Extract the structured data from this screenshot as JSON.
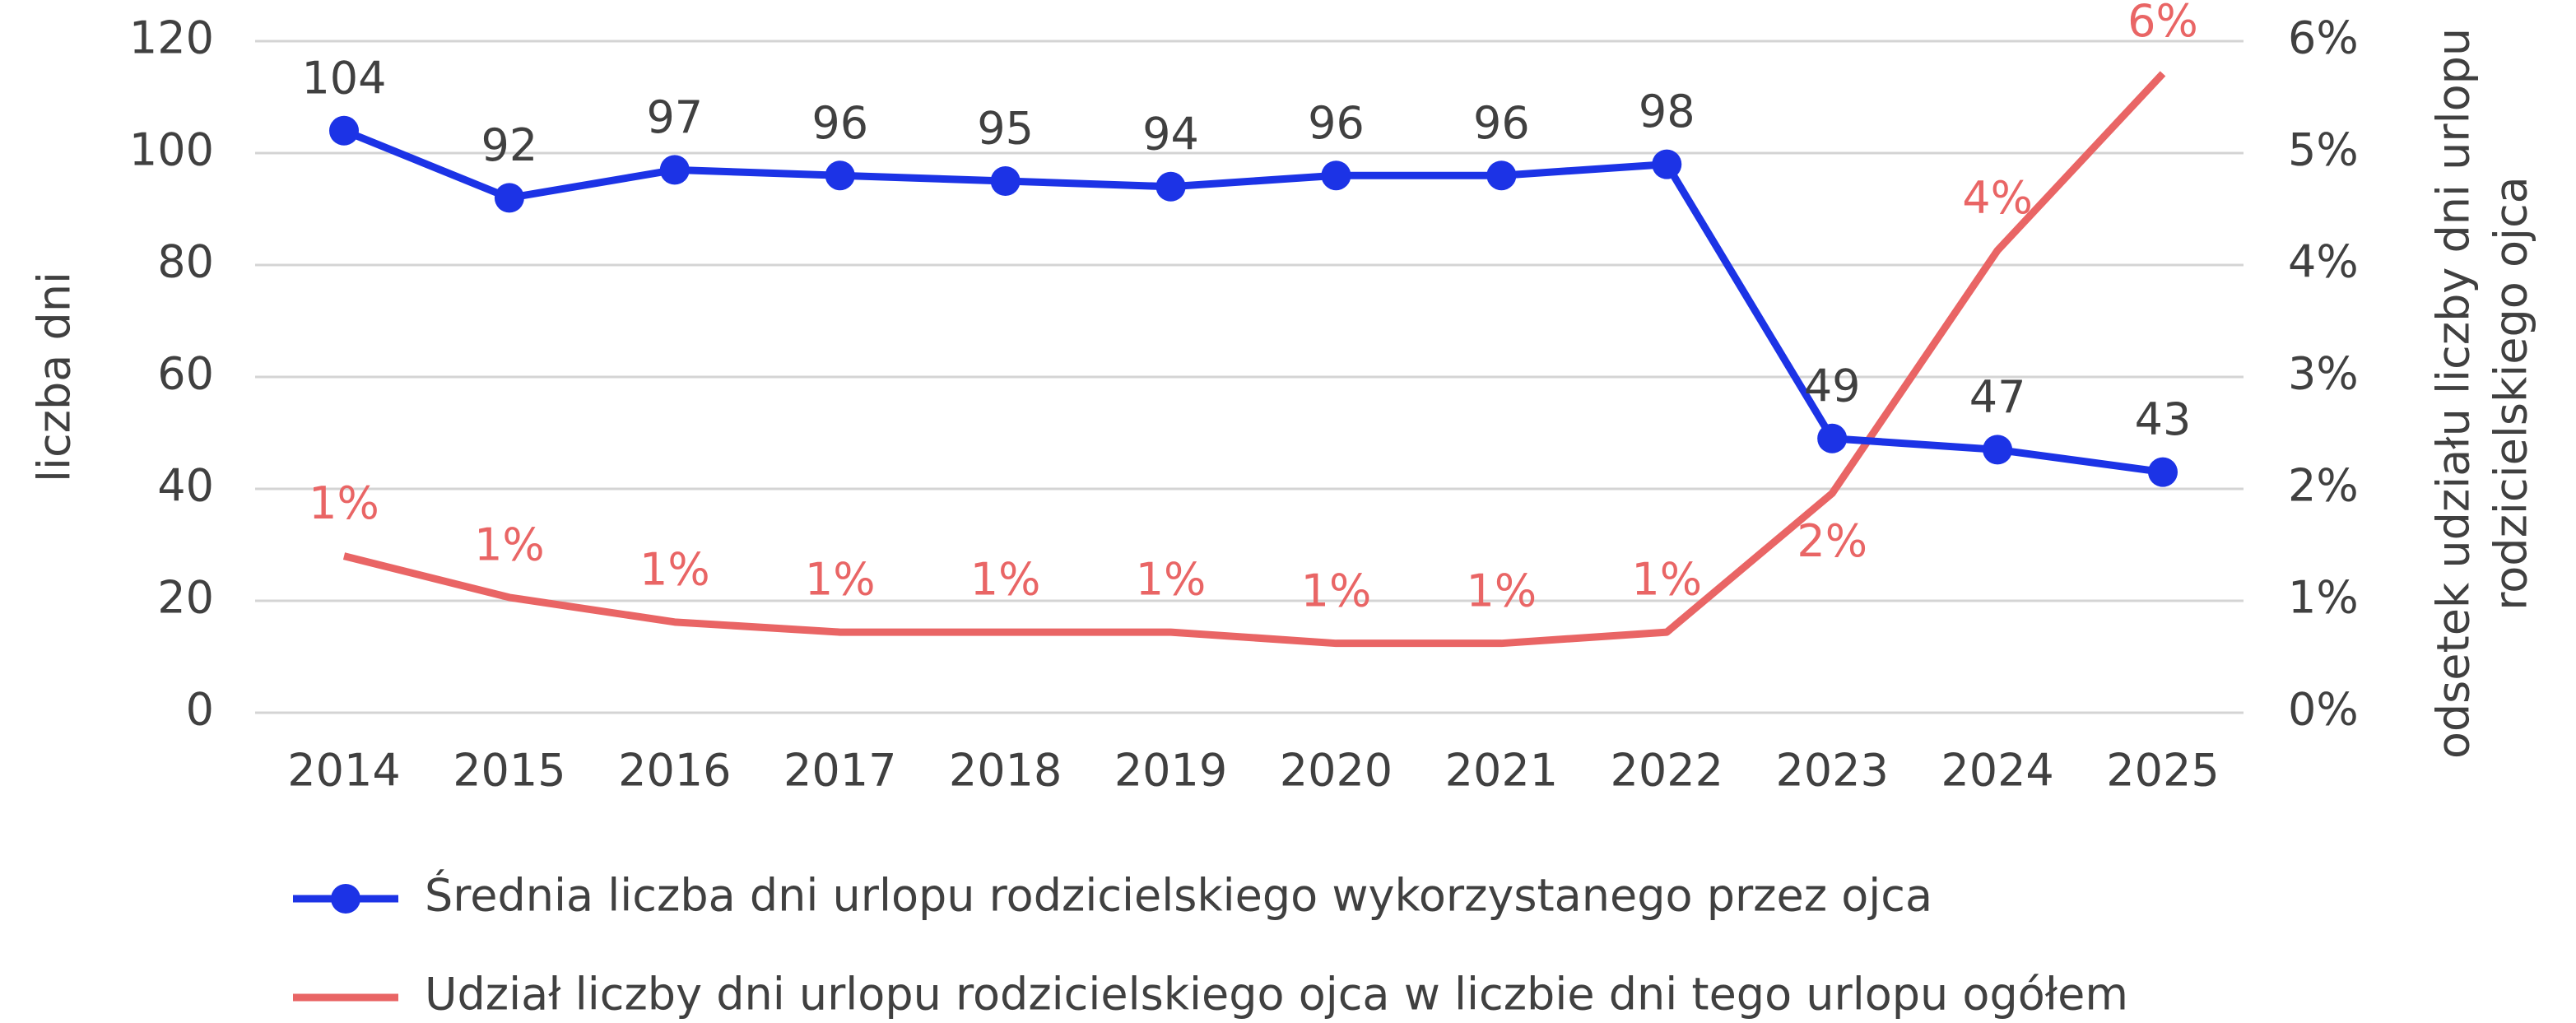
{
  "chart_data": {
    "type": "line",
    "ylabel": "liczba dni",
    "y2label": [
      "odsetek udziału liczby dni urlopu",
      "rodzicielskiego ojca"
    ],
    "categories": [
      "2014",
      "2015",
      "2016",
      "2017",
      "2018",
      "2019",
      "2020",
      "2021",
      "2022",
      "2023",
      "2024",
      "2025"
    ],
    "ylim": [
      0,
      120
    ],
    "yticks": [
      0,
      20,
      40,
      60,
      80,
      100,
      120
    ],
    "y2lim": [
      0,
      6
    ],
    "y2ticks": [
      {
        "value": 0,
        "label": "0%"
      },
      {
        "value": 1,
        "label": "1%"
      },
      {
        "value": 2,
        "label": "2%"
      },
      {
        "value": 3,
        "label": "3%"
      },
      {
        "value": 4,
        "label": "4%"
      },
      {
        "value": 5,
        "label": "5%"
      },
      {
        "value": 6,
        "label": "6%"
      }
    ],
    "grid": true,
    "series": [
      {
        "name": "Średnia liczba dni urlopu rodzicielskiego wykorzystanego przez ojca",
        "color": "#1c33e6",
        "markers": true,
        "values": [
          104,
          92,
          97,
          96,
          95,
          94,
          96,
          96,
          98,
          49,
          47,
          43
        ]
      },
      {
        "name": "Udział liczby dni urlopu rodzicielskiego ojca w liczbie dni tego urlopu ogółem",
        "color": "#e96565",
        "axis": "y2",
        "markers": false,
        "values": [
          1.4,
          1.03,
          0.81,
          0.72,
          0.72,
          0.72,
          0.62,
          0.62,
          0.72,
          1.96,
          4.13,
          5.71
        ],
        "value_labels": [
          "1%",
          "1%",
          "1%",
          "1%",
          "1%",
          "1%",
          "1%",
          "1%",
          "1%",
          "2%",
          "4%",
          "6%"
        ]
      }
    ]
  }
}
